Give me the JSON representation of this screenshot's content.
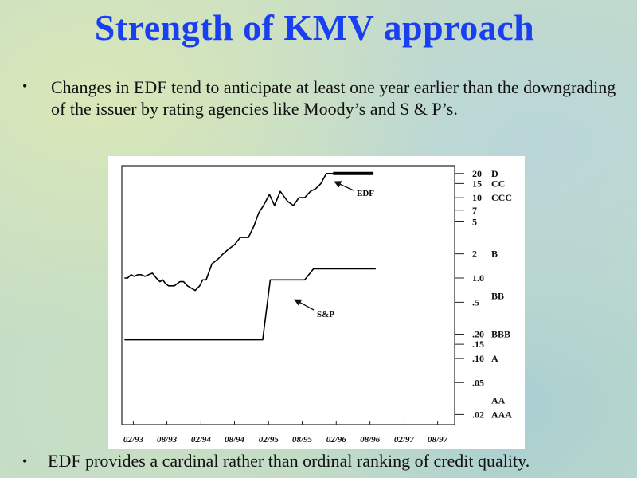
{
  "title": "Strength of KMV approach",
  "bullets": [
    {
      "symbol": "•",
      "text": "Changes in EDF tend to anticipate at least one year earlier than the downgrading of the issuer by rating agencies like Moody’s and S & P’s."
    },
    {
      "symbol": "•",
      "text": "EDF provides a cardinal rather than ordinal ranking of credit quality."
    }
  ],
  "chart_data": {
    "type": "line",
    "title": "",
    "xlabel": "",
    "ylabel": "",
    "y_scale": "log",
    "ylim": [
      0.015,
      25
    ],
    "x_ticks": [
      "02/93",
      "08/93",
      "02/94",
      "08/94",
      "02/95",
      "08/95",
      "02/96",
      "08/96",
      "02/97",
      "08/97"
    ],
    "y_ticks": [
      {
        "label": "20",
        "value": 20
      },
      {
        "label": "15",
        "value": 15
      },
      {
        "label": "10",
        "value": 10
      },
      {
        "label": "7",
        "value": 7
      },
      {
        "label": "5",
        "value": 5
      },
      {
        "label": "2",
        "value": 2
      },
      {
        "label": "1.0",
        "value": 1.0
      },
      {
        "label": ".5",
        "value": 0.5
      },
      {
        "label": ".20",
        "value": 0.2
      },
      {
        "label": ".15",
        "value": 0.15
      },
      {
        "label": ".10",
        "value": 0.1
      },
      {
        "label": ".05",
        "value": 0.05
      },
      {
        "label": ".02",
        "value": 0.02
      }
    ],
    "ratings": [
      {
        "label": "D",
        "value": 20
      },
      {
        "label": "CC",
        "value": 15
      },
      {
        "label": "CCC",
        "value": 10
      },
      {
        "label": "B",
        "value": 2
      },
      {
        "label": "BB",
        "value": 0.6
      },
      {
        "label": "BBB",
        "value": 0.2
      },
      {
        "label": "A",
        "value": 0.1
      },
      {
        "label": "AA",
        "value": 0.03
      },
      {
        "label": "AAA",
        "value": 0.02
      }
    ],
    "series": [
      {
        "name": "EDF",
        "color": "#000000",
        "points": [
          [
            "1992-12-15",
            1.0
          ],
          [
            "1993-01-01",
            1.0
          ],
          [
            "1993-01-20",
            1.1
          ],
          [
            "1993-02-05",
            1.05
          ],
          [
            "1993-02-25",
            1.1
          ],
          [
            "1993-03-15",
            1.1
          ],
          [
            "1993-04-05",
            1.05
          ],
          [
            "1993-04-25",
            1.1
          ],
          [
            "1993-05-15",
            1.15
          ],
          [
            "1993-06-05",
            1.0
          ],
          [
            "1993-06-25",
            0.9
          ],
          [
            "1993-07-10",
            0.95
          ],
          [
            "1993-07-25",
            0.85
          ],
          [
            "1993-08-10",
            0.8
          ],
          [
            "1993-09-10",
            0.8
          ],
          [
            "1993-10-10",
            0.9
          ],
          [
            "1993-10-30",
            0.9
          ],
          [
            "1993-11-20",
            0.8
          ],
          [
            "1993-12-10",
            0.75
          ],
          [
            "1994-01-01",
            0.7
          ],
          [
            "1994-01-25",
            0.8
          ],
          [
            "1994-02-10",
            0.95
          ],
          [
            "1994-03-01",
            0.95
          ],
          [
            "1994-04-01",
            1.5
          ],
          [
            "1994-05-01",
            1.7
          ],
          [
            "1994-06-01",
            2.0
          ],
          [
            "1994-07-01",
            2.3
          ],
          [
            "1994-08-01",
            2.6
          ],
          [
            "1994-09-01",
            3.2
          ],
          [
            "1994-10-15",
            3.2
          ],
          [
            "1994-11-15",
            4.5
          ],
          [
            "1994-12-10",
            6.5
          ],
          [
            "1995-01-05",
            8.0
          ],
          [
            "1995-02-05",
            11.0
          ],
          [
            "1995-03-05",
            8.0
          ],
          [
            "1995-04-05",
            12.0
          ],
          [
            "1995-05-15",
            9.0
          ],
          [
            "1995-06-15",
            8.0
          ],
          [
            "1995-07-15",
            10.0
          ],
          [
            "1995-08-15",
            10.0
          ],
          [
            "1995-09-15",
            12.0
          ],
          [
            "1995-10-15",
            13.0
          ],
          [
            "1995-11-10",
            15.0
          ],
          [
            "1995-12-10",
            20.0
          ],
          [
            "1996-01-15",
            20.0
          ],
          [
            "1996-08-20",
            20.0
          ]
        ]
      },
      {
        "name": "S&P",
        "color": "#000000",
        "points": [
          [
            "1992-12-15",
            0.17
          ],
          [
            "1994-12-31",
            0.17
          ],
          [
            "1995-02-10",
            0.95
          ],
          [
            "1995-08-15",
            0.95
          ],
          [
            "1995-10-01",
            1.3
          ],
          [
            "1996-09-01",
            1.3
          ]
        ]
      }
    ]
  }
}
